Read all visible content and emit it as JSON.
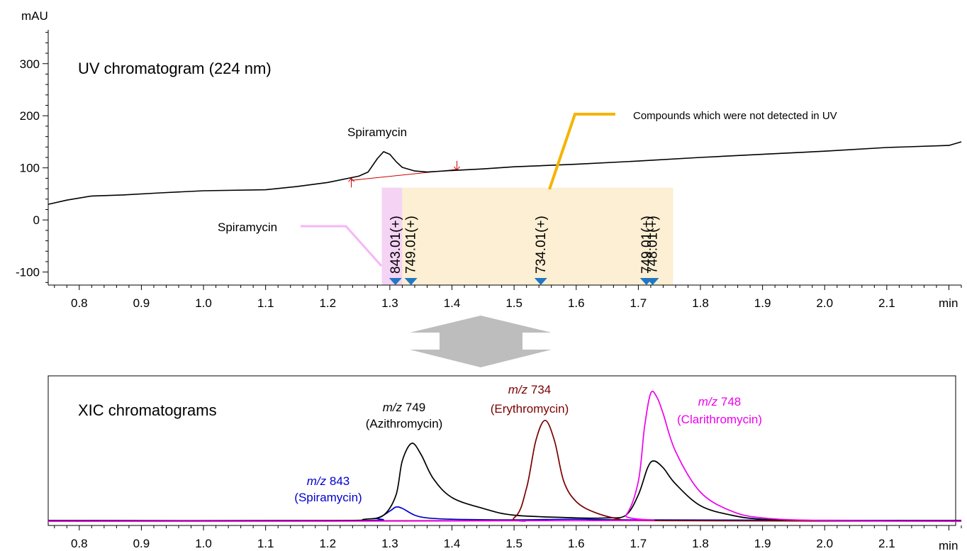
{
  "chart_data": [
    {
      "type": "line",
      "title": "UV chromatogram (224 nm)",
      "ylabel": "mAU",
      "xlabel": "min",
      "xlim": [
        0.75,
        2.22
      ],
      "ylim": [
        -125,
        365
      ],
      "x_ticks": [
        {
          "v": 0.8,
          "label": "0.8"
        },
        {
          "v": 0.9,
          "label": "0.9"
        },
        {
          "v": 1.0,
          "label": "1.0"
        },
        {
          "v": 1.1,
          "label": "1.1"
        },
        {
          "v": 1.2,
          "label": "1.2"
        },
        {
          "v": 1.3,
          "label": "1.3"
        },
        {
          "v": 1.4,
          "label": "1.4"
        },
        {
          "v": 1.5,
          "label": "1.5"
        },
        {
          "v": 1.6,
          "label": "1.6"
        },
        {
          "v": 1.7,
          "label": "1.7"
        },
        {
          "v": 1.8,
          "label": "1.8"
        },
        {
          "v": 1.9,
          "label": "1.9"
        },
        {
          "v": 2.0,
          "label": "2.0"
        },
        {
          "v": 2.1,
          "label": "2.1"
        }
      ],
      "y_ticks": [
        {
          "v": 300,
          "label": "300"
        },
        {
          "v": 200,
          "label": "200"
        },
        {
          "v": 100,
          "label": "100"
        },
        {
          "v": 0,
          "label": "0"
        },
        {
          "v": -100,
          "label": "-100"
        }
      ],
      "grid": false,
      "series": [
        {
          "color": "#000000",
          "x": [
            0.75,
            0.78,
            0.82,
            0.87,
            0.93,
            1.0,
            1.1,
            1.15,
            1.2,
            1.25,
            1.265,
            1.28,
            1.29,
            1.3,
            1.31,
            1.32,
            1.34,
            1.36,
            1.4,
            1.45,
            1.5,
            1.6,
            1.7,
            1.8,
            1.9,
            2.0,
            2.1,
            2.2,
            2.22
          ],
          "y": [
            30,
            38,
            46,
            48,
            52,
            56,
            58,
            64,
            72,
            84,
            92,
            118,
            131,
            126,
            112,
            101,
            94,
            92,
            95,
            98,
            102,
            107,
            113,
            120,
            126,
            132,
            139,
            143,
            150
          ]
        }
      ],
      "baseline": {
        "color": "#cc0000",
        "x": [
          1.238,
          1.408
        ],
        "y": [
          76,
          97
        ]
      },
      "annotations": [
        {
          "text": "Spiramycin",
          "x": 1.29,
          "y": 162
        },
        {
          "text": "Compounds which were not detected in UV",
          "x": 1.67,
          "y": 200
        },
        {
          "text": "Spiramycin",
          "x": 1.07,
          "y": -20
        }
      ],
      "highlight_regions": [
        {
          "color": "#f5d3f5",
          "x": [
            1.287,
            1.32
          ],
          "y": [
            -125,
            62
          ]
        },
        {
          "color": "#fcefd4",
          "x": [
            1.32,
            1.756
          ],
          "y": [
            -125,
            62
          ]
        }
      ],
      "ms_markers": [
        {
          "label": "843.01(+)",
          "x": 1.309
        },
        {
          "label": "749.01(+)",
          "x": 1.334
        },
        {
          "label": "734.01(+)",
          "x": 1.543
        },
        {
          "label": "749.01(+)",
          "x": 1.713
        },
        {
          "label": "748.01(+)",
          "x": 1.723
        }
      ]
    },
    {
      "type": "line",
      "title": "XIC chromatograms",
      "xlabel": "min",
      "xlim": [
        0.75,
        2.22
      ],
      "ylim": [
        0,
        100
      ],
      "x_ticks": [
        {
          "v": 0.8,
          "label": "0.8"
        },
        {
          "v": 0.9,
          "label": "0.9"
        },
        {
          "v": 1.0,
          "label": "1.0"
        },
        {
          "v": 1.1,
          "label": "1.1"
        },
        {
          "v": 1.2,
          "label": "1.2"
        },
        {
          "v": 1.3,
          "label": "1.3"
        },
        {
          "v": 1.4,
          "label": "1.4"
        },
        {
          "v": 1.5,
          "label": "1.5"
        },
        {
          "v": 1.6,
          "label": "1.6"
        },
        {
          "v": 1.7,
          "label": "1.7"
        },
        {
          "v": 1.8,
          "label": "1.8"
        },
        {
          "v": 1.9,
          "label": "1.9"
        },
        {
          "v": 2.0,
          "label": "2.0"
        },
        {
          "v": 2.1,
          "label": "2.1"
        }
      ],
      "grid": false,
      "series": [
        {
          "color": "#0000cc",
          "x": [
            0.75,
            1.24,
            1.28,
            1.3,
            1.31,
            1.32,
            1.34,
            1.36,
            1.4,
            1.5,
            1.6,
            1.7,
            2.22
          ],
          "y": [
            1,
            1,
            3,
            8,
            11,
            10,
            5,
            3,
            2,
            1.5,
            2,
            1.5,
            1
          ]
        },
        {
          "color": "#000000",
          "x": [
            0.75,
            1.2,
            1.26,
            1.29,
            1.31,
            1.32,
            1.335,
            1.35,
            1.37,
            1.4,
            1.45,
            1.5,
            1.6,
            1.65,
            1.68,
            1.7,
            1.715,
            1.725,
            1.74,
            1.76,
            1.8,
            1.85,
            1.9,
            2.0,
            2.22
          ],
          "y": [
            1,
            1,
            2,
            5,
            20,
            45,
            58,
            50,
            32,
            18,
            10,
            5,
            3,
            3,
            5,
            20,
            40,
            45,
            40,
            28,
            12,
            5,
            2,
            1,
            1
          ]
        },
        {
          "color": "#7a0000",
          "x": [
            0.75,
            1.45,
            1.5,
            1.52,
            1.535,
            1.55,
            1.565,
            1.58,
            1.6,
            1.63,
            1.67,
            1.7,
            2.22
          ],
          "y": [
            0.5,
            1,
            3,
            25,
            60,
            75,
            60,
            30,
            15,
            7,
            2,
            1,
            0.5
          ]
        },
        {
          "color": "#ee00ee",
          "x": [
            0.75,
            1.65,
            1.68,
            1.7,
            1.71,
            1.72,
            1.73,
            1.74,
            1.76,
            1.8,
            1.85,
            1.9,
            2.0,
            2.22
          ],
          "y": [
            0.5,
            1,
            5,
            30,
            70,
            95,
            92,
            80,
            52,
            22,
            8,
            3,
            1,
            0.5
          ]
        }
      ],
      "annotations": [
        {
          "text": "m/z 843",
          "subtext": "(Spiramycin)",
          "color": "#0000cc",
          "x": 1.255,
          "y": 26
        },
        {
          "text": "m/z 749",
          "subtext": "(Azithromycin)",
          "color": "#000000",
          "x": 1.335,
          "y": 84
        },
        {
          "text": "m/z 734",
          "subtext": "(Erythromycin)",
          "color": "#7a0000",
          "x": 1.56,
          "y": 94
        },
        {
          "text": "m/z 748",
          "subtext": "(Clarithromycin)",
          "color": "#ee00ee",
          "x": 1.805,
          "y": 80
        }
      ]
    }
  ],
  "labels": {
    "uv_ylabel": "mAU",
    "uv_xunit": "min",
    "uv_title": "UV chromatogram (224 nm)",
    "uv_peak": "Spiramycin",
    "uv_note": "Compounds which were not detected in UV",
    "uv_left_label": "Spiramycin",
    "xic_title": "XIC chromatograms",
    "xic_xunit": "min",
    "mz843_prefix": "m/z",
    "mz843_value": " 843",
    "mz843_name": "(Spiramycin)",
    "mz749_prefix": "m/z",
    "mz749_value": " 749",
    "mz749_name": "(Azithromycin)",
    "mz734_prefix": "m/z",
    "mz734_value": " 734",
    "mz734_name": "(Erythromycin)",
    "mz748_prefix": "m/z",
    "mz748_value": " 748",
    "mz748_name": "(Clarithromycin)"
  },
  "colors": {
    "marker": "#1f78c4",
    "callout_orange": "#f5b400",
    "callout_pink": "#f6b6f6",
    "arrow_gray": "#bdbdbd"
  }
}
